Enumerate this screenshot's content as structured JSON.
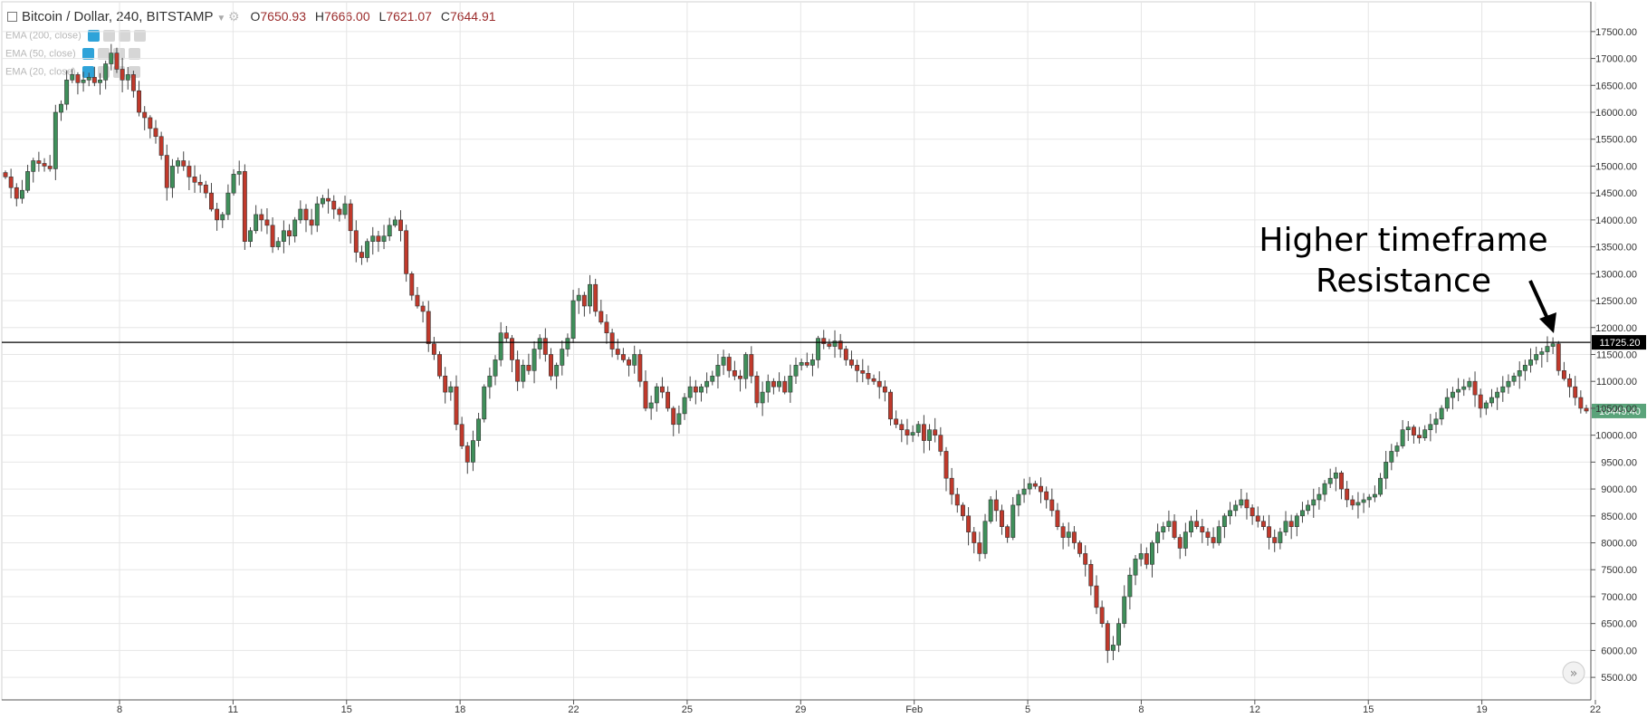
{
  "header": {
    "symbol": "Bitcoin / Dollar, 240, BITSTAMP",
    "open_label": "O",
    "open": "7650.93",
    "high_label": "H",
    "high": "7666.00",
    "low_label": "L",
    "low": "7621.07",
    "close_label": "C",
    "close": "7644.91"
  },
  "indicators": [
    {
      "label": "EMA (200, close)"
    },
    {
      "label": "EMA (50, close)"
    },
    {
      "label": "EMA (20, close)"
    }
  ],
  "annotation": {
    "line1": "Higher timeframe",
    "line2": "Resistance"
  },
  "colors": {
    "up": "#3f8f5a",
    "down": "#c0392b",
    "grid": "#e6e6e6",
    "line": "#000000",
    "last_badge": "#5aa37a"
  },
  "chart_data": {
    "type": "candlestick",
    "ylim": [
      5300,
      17750
    ],
    "y_ticks": [
      17500,
      17000,
      16500,
      16000,
      15500,
      15000,
      14500,
      14000,
      13500,
      13000,
      12500,
      12000,
      11500,
      11000,
      10500,
      10000,
      9500,
      9000,
      8500,
      8000,
      7500,
      7000,
      6500,
      6000,
      5500
    ],
    "x_ticks": [
      "8",
      "11",
      "15",
      "18",
      "22",
      "25",
      "29",
      "Feb",
      "5",
      "8",
      "12",
      "15",
      "19",
      "22"
    ],
    "horizontal_line": {
      "value": 11725.2,
      "label": "11725.20"
    },
    "last_price": {
      "value": 10449.4,
      "label": "10449.40"
    },
    "closes": [
      14800,
      14600,
      14400,
      14550,
      14900,
      15100,
      15050,
      15000,
      14950,
      16000,
      16150,
      16600,
      16700,
      16550,
      16600,
      16650,
      16550,
      16600,
      16900,
      17100,
      16800,
      16600,
      16700,
      16400,
      16000,
      15900,
      15700,
      15550,
      15200,
      14600,
      15000,
      15100,
      15000,
      14800,
      14700,
      14650,
      14500,
      14200,
      14000,
      14100,
      14500,
      14850,
      14900,
      13600,
      13800,
      14100,
      14000,
      13900,
      13500,
      13600,
      13800,
      13700,
      14000,
      14200,
      14000,
      13900,
      14300,
      14400,
      14350,
      14200,
      14100,
      14300,
      13800,
      13400,
      13300,
      13600,
      13700,
      13600,
      13700,
      13900,
      14000,
      13800,
      13000,
      12600,
      12400,
      12300,
      11700,
      11500,
      11100,
      10800,
      10900,
      10200,
      9800,
      9500,
      9900,
      10300,
      10900,
      11100,
      11400,
      11900,
      11800,
      11400,
      11000,
      11300,
      11200,
      11600,
      11800,
      11500,
      11100,
      11300,
      11600,
      11800,
      12500,
      12600,
      12400,
      12800,
      12300,
      12100,
      11900,
      11600,
      11500,
      11400,
      11300,
      11500,
      11000,
      10500,
      10600,
      10900,
      10800,
      10500,
      10200,
      10400,
      10700,
      10900,
      10800,
      10900,
      11000,
      11100,
      11300,
      11450,
      11200,
      11100,
      11050,
      11500,
      11100,
      10600,
      10800,
      11000,
      10900,
      11000,
      10800,
      11100,
      11300,
      11350,
      11300,
      11400,
      11800,
      11700,
      11650,
      11750,
      11600,
      11400,
      11300,
      11200,
      11150,
      11050,
      11000,
      10900,
      10800,
      10300,
      10200,
      10100,
      10000,
      10050,
      10200,
      9900,
      10100,
      10000,
      9700,
      9200,
      8900,
      8700,
      8500,
      8200,
      8000,
      7800,
      8400,
      8800,
      8600,
      8300,
      8100,
      8700,
      8900,
      9000,
      9100,
      9050,
      8950,
      8800,
      8600,
      8300,
      8100,
      8200,
      8000,
      7800,
      7600,
      7200,
      6800,
      6500,
      6000,
      6100,
      6500,
      7000,
      7400,
      7700,
      7800,
      7600,
      8000,
      8200,
      8300,
      8400,
      8100,
      7900,
      8200,
      8400,
      8300,
      8200,
      8100,
      8000,
      8300,
      8500,
      8600,
      8700,
      8800,
      8650,
      8500,
      8400,
      8300,
      8100,
      8000,
      8200,
      8400,
      8300,
      8500,
      8600,
      8700,
      8800,
      8900,
      9100,
      9200,
      9300,
      9000,
      8800,
      8700,
      8750,
      8800,
      8850,
      8900,
      9200,
      9500,
      9700,
      9800,
      10100,
      10150,
      10000,
      9950,
      10100,
      10200,
      10300,
      10500,
      10700,
      10800,
      10850,
      10900,
      11000,
      10750,
      10500,
      10600,
      10700,
      10800,
      10900,
      11000,
      11100,
      11200,
      11300,
      11400,
      11500,
      11550,
      11650,
      11700,
      11200,
      11050,
      10900,
      10700,
      10500,
      10449
    ]
  }
}
